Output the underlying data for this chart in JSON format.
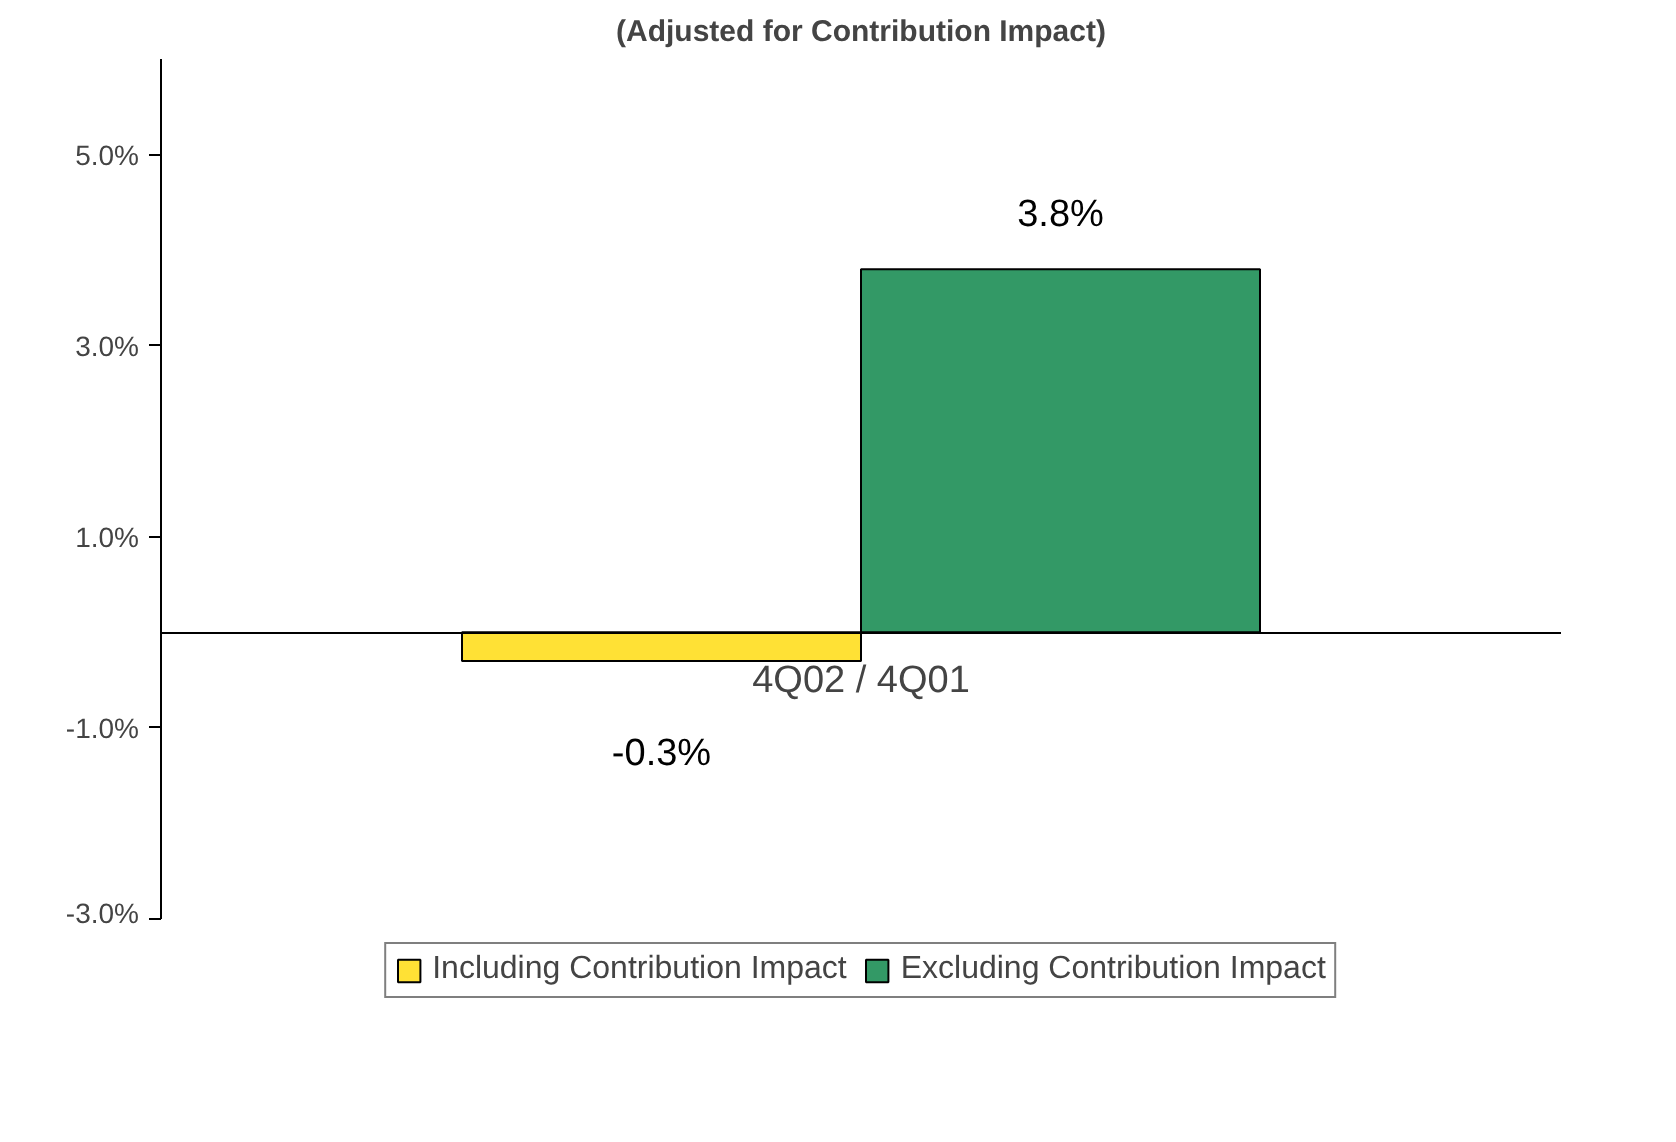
{
  "chart_data": {
    "type": "bar",
    "title": "(Adjusted for Contribution Impact)",
    "categories": [
      "4Q02 / 4Q01"
    ],
    "series": [
      {
        "name": "Including Contribution Impact",
        "color": "#ffe135",
        "values": [
          -0.3
        ],
        "value_labels": [
          "-0.3%"
        ]
      },
      {
        "name": "Excluding Contribution Impact",
        "color": "#339966",
        "values": [
          3.8
        ],
        "value_labels": [
          "3.8%"
        ]
      }
    ],
    "ylim": [
      -3.0,
      6.0
    ],
    "yticks": [
      {
        "value": -3.0,
        "label": "-3.0%"
      },
      {
        "value": -1.0,
        "label": "-1.0%"
      },
      {
        "value": 1.0,
        "label": "1.0%"
      },
      {
        "value": 3.0,
        "label": "3.0%"
      },
      {
        "value": 5.0,
        "label": "5.0%"
      }
    ],
    "grid": false,
    "legend": "bottom"
  }
}
